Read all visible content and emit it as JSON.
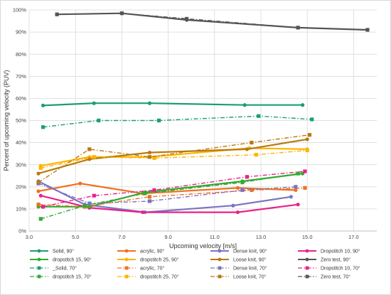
{
  "chart_data": {
    "type": "line",
    "xlabel": "Upcoming velocity [m/s]",
    "ylabel": "Percent of upcoming velocity  (PUV)",
    "xlim": [
      3.0,
      18.0
    ],
    "ylim": [
      0,
      100
    ],
    "xticks": [
      "3.0",
      "5.0",
      "7.0",
      "9.0",
      "11.0",
      "13.0",
      "15.0",
      "17.0"
    ],
    "yticks": [
      "0%",
      "10%",
      "20%",
      "30%",
      "40%",
      "50%",
      "60%",
      "70%",
      "80%",
      "90%",
      "100%"
    ],
    "grid": true,
    "legend_position": "bottom",
    "series": [
      {
        "name": "Solid, 90°",
        "color": "#1aa06d",
        "dash": "solid",
        "marker": "circle",
        "x": [
          3.6,
          5.8,
          8.2,
          12.3,
          14.8
        ],
        "y": [
          56.8,
          57.8,
          57.8,
          57.0,
          57.0
        ]
      },
      {
        "name": "acrylic, 90°",
        "color": "#f07020",
        "dash": "solid",
        "marker": "circle",
        "x": [
          3.4,
          5.2,
          7.9,
          12.0,
          14.5
        ],
        "y": [
          18.0,
          21.5,
          17.0,
          19.5,
          18.5
        ]
      },
      {
        "name": "Dense knit, 90°",
        "color": "#7b73c2",
        "dash": "solid",
        "marker": "circle",
        "x": [
          3.4,
          5.4,
          8.0,
          11.8,
          14.3
        ],
        "y": [
          22.5,
          12.0,
          8.5,
          11.5,
          15.5
        ]
      },
      {
        "name": "Dropstitch 10, 90°",
        "color": "#e8228a",
        "dash": "solid",
        "marker": "circle",
        "x": [
          3.5,
          5.6,
          7.9,
          12.0,
          14.6
        ],
        "y": [
          16.0,
          10.5,
          8.5,
          8.5,
          12.0
        ]
      },
      {
        "name": "dropstitch 15, 90°",
        "color": "#33aa33",
        "dash": "solid",
        "marker": "circle",
        "x": [
          3.4,
          5.6,
          8.0,
          12.2,
          14.8
        ],
        "y": [
          11.0,
          11.0,
          17.5,
          22.5,
          26.0
        ]
      },
      {
        "name": "dropstitch 25, 90°",
        "color": "#ffb300",
        "dash": "solid",
        "marker": "circle",
        "x": [
          3.5,
          5.6,
          8.2,
          12.5,
          15.0
        ],
        "y": [
          29.5,
          33.5,
          33.5,
          37.5,
          37.0
        ]
      },
      {
        "name": "Loose knit, 90°",
        "color": "#b8790f",
        "dash": "solid",
        "marker": "circle",
        "x": [
          3.4,
          5.6,
          8.2,
          12.4,
          15.0
        ],
        "y": [
          26.0,
          32.5,
          35.5,
          37.0,
          41.5
        ]
      },
      {
        "name": "Zero test, 90°",
        "color": "#555555",
        "dash": "solid",
        "marker": "circle",
        "x": [
          4.2,
          7.0,
          9.8,
          14.6,
          17.6
        ],
        "y": [
          98.0,
          98.5,
          95.5,
          92.0,
          91.0
        ]
      },
      {
        "name": "_Solid, 70°",
        "color": "#1aa06d",
        "dash": "dashdot",
        "marker": "square",
        "x": [
          3.6,
          6.0,
          8.6,
          12.9,
          15.2
        ],
        "y": [
          47.0,
          50.0,
          50.0,
          52.0,
          50.5
        ]
      },
      {
        "name": "acrylic, 70°",
        "color": "#f07020",
        "dash": "dashdot",
        "marker": "square",
        "x": [
          3.4,
          5.4,
          8.2,
          12.6,
          14.9
        ],
        "y": [
          12.0,
          11.0,
          15.5,
          18.5,
          19.5
        ]
      },
      {
        "name": "Dense knit, 70°",
        "color": "#7b73c2",
        "dash": "dashdot",
        "marker": "square",
        "x": [
          3.4,
          5.6,
          8.2,
          12.2,
          14.5
        ],
        "y": [
          21.5,
          12.5,
          13.5,
          18.5,
          20.0
        ]
      },
      {
        "name": "Dropstitch 10, 70°",
        "color": "#e8228a",
        "dash": "dashdot",
        "marker": "square",
        "x": [
          3.6,
          5.8,
          8.4,
          12.4,
          14.9
        ],
        "y": [
          11.0,
          16.0,
          18.5,
          24.5,
          27.0
        ]
      },
      {
        "name": "dropstitch 15, 70°",
        "color": "#33aa33",
        "dash": "dashdot",
        "marker": "square",
        "x": [
          3.5,
          5.4,
          8.0,
          12.2,
          14.6
        ],
        "y": [
          5.5,
          11.5,
          17.0,
          22.0,
          26.0
        ]
      },
      {
        "name": "dropstitch 25, 70°",
        "color": "#ffb300",
        "dash": "dashdot",
        "marker": "square",
        "x": [
          3.5,
          5.8,
          8.4,
          12.8,
          15.0
        ],
        "y": [
          28.5,
          33.5,
          33.0,
          34.5,
          36.5
        ]
      },
      {
        "name": "Loose knit, 70°",
        "color": "#b8790f",
        "dash": "dashdot",
        "marker": "square",
        "x": [
          3.4,
          5.6,
          8.2,
          12.6,
          15.1
        ],
        "y": [
          22.0,
          37.0,
          33.5,
          40.0,
          43.5
        ]
      },
      {
        "name": "Zero test, 70°",
        "color": "#555555",
        "dash": "dashdot",
        "marker": "square",
        "x": [
          4.2,
          7.0,
          9.8,
          14.6,
          17.6
        ],
        "y": [
          98.0,
          98.5,
          96.0,
          92.0,
          91.0
        ]
      }
    ]
  }
}
